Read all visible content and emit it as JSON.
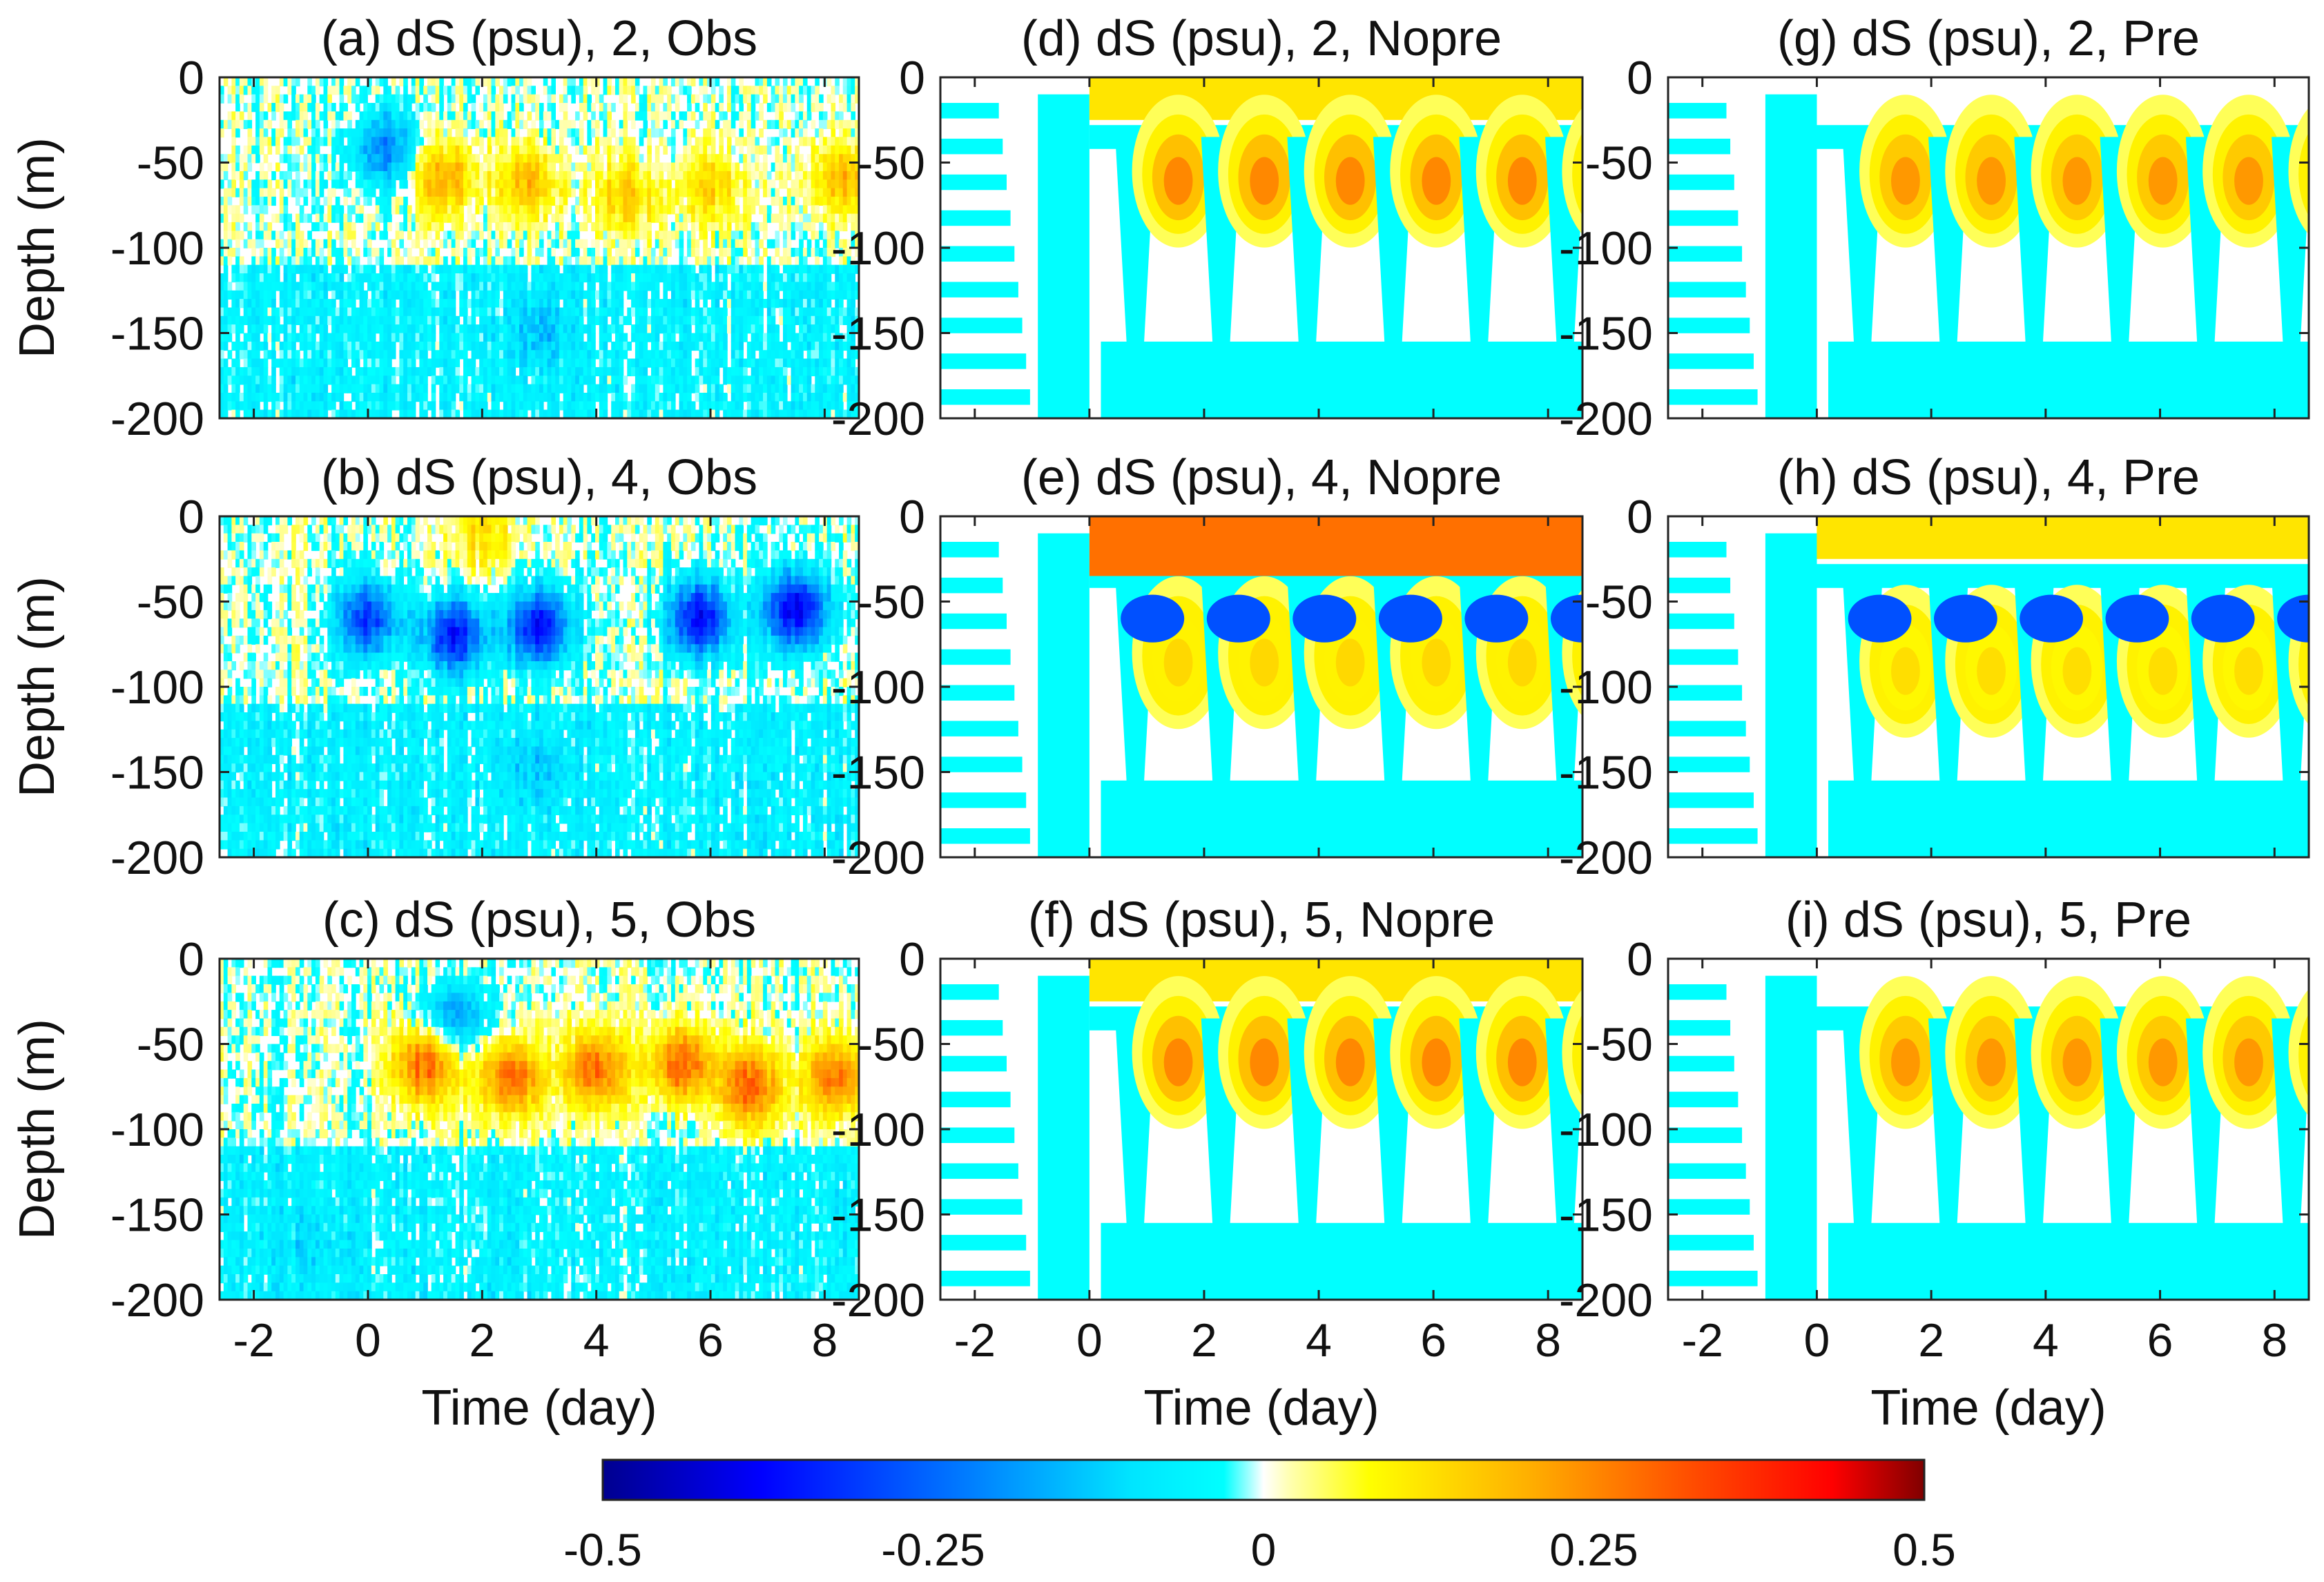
{
  "figure": {
    "shared_ylabel": "Depth (m)",
    "shared_xlabel": "Time (day)"
  },
  "colorbar": {
    "ticks": [
      "-0.5",
      "-0.25",
      "0",
      "0.25",
      "0.5"
    ],
    "range": [
      -0.5,
      0.5
    ],
    "colormap": "jet-with-white-center"
  },
  "chart_data": [
    {
      "type": "heatmap",
      "panel": "a",
      "title": "(a) dS (psu), 2, Obs",
      "xlabel": "",
      "ylabel": "Depth (m)",
      "xlim": [
        -2.6,
        8.6
      ],
      "ylim": [
        -200,
        0
      ],
      "xticks": [
        -2,
        0,
        2,
        4,
        6,
        8
      ],
      "yticks": [
        0,
        -50,
        -100,
        -150,
        -200
      ],
      "source": "Obs",
      "features": [
        {
          "t": 0.3,
          "z": -42,
          "value": -0.22
        },
        {
          "t": 1.3,
          "z": -60,
          "value": 0.2
        },
        {
          "t": 2.8,
          "z": -62,
          "value": 0.18
        },
        {
          "t": 4.5,
          "z": -70,
          "value": 0.15
        },
        {
          "t": 6.0,
          "z": -65,
          "value": 0.14
        },
        {
          "t": 8.3,
          "z": -60,
          "value": 0.18
        },
        {
          "t": 3.0,
          "z": -150,
          "value": -0.08
        }
      ]
    },
    {
      "type": "heatmap",
      "panel": "b",
      "title": "(b) dS (psu), 4, Obs",
      "xlabel": "",
      "ylabel": "Depth (m)",
      "xlim": [
        -2.6,
        8.6
      ],
      "ylim": [
        -200,
        0
      ],
      "xticks": [
        -2,
        0,
        2,
        4,
        6,
        8
      ],
      "yticks": [
        0,
        -50,
        -100,
        -150,
        -200
      ],
      "source": "Obs",
      "features": [
        {
          "t": 0.0,
          "z": -60,
          "value": -0.3
        },
        {
          "t": 1.5,
          "z": -70,
          "value": -0.35
        },
        {
          "t": 3.0,
          "z": -65,
          "value": -0.38
        },
        {
          "t": 5.8,
          "z": -60,
          "value": -0.38
        },
        {
          "t": 7.5,
          "z": -55,
          "value": -0.4
        },
        {
          "t": 2.0,
          "z": -12,
          "value": 0.12
        },
        {
          "t": 3.0,
          "z": -150,
          "value": -0.08
        }
      ]
    },
    {
      "type": "heatmap",
      "panel": "c",
      "title": "(c) dS (psu), 5, Obs",
      "xlabel": "Time (day)",
      "ylabel": "Depth (m)",
      "xlim": [
        -2.6,
        8.6
      ],
      "ylim": [
        -200,
        0
      ],
      "xticks": [
        -2,
        0,
        2,
        4,
        6,
        8
      ],
      "yticks": [
        0,
        -50,
        -100,
        -150,
        -200
      ],
      "source": "Obs",
      "features": [
        {
          "t": 1.0,
          "z": -62,
          "value": 0.3
        },
        {
          "t": 2.5,
          "z": -70,
          "value": 0.3
        },
        {
          "t": 4.0,
          "z": -65,
          "value": 0.28
        },
        {
          "t": 5.5,
          "z": -62,
          "value": 0.3
        },
        {
          "t": 6.7,
          "z": -75,
          "value": 0.3
        },
        {
          "t": 8.2,
          "z": -70,
          "value": 0.28
        },
        {
          "t": 1.5,
          "z": -35,
          "value": -0.2
        },
        {
          "t": -1.0,
          "z": -170,
          "value": -0.05
        }
      ]
    },
    {
      "type": "heatmap",
      "panel": "d",
      "title": "(d) dS (psu), 2, Nopre",
      "xlabel": "",
      "ylabel": "",
      "xlim": [
        -2.6,
        8.6
      ],
      "ylim": [
        -200,
        0
      ],
      "xticks": [
        -2,
        0,
        2,
        4,
        6,
        8
      ],
      "yticks": [
        0,
        -50,
        -100,
        -150,
        -200
      ],
      "source": "Nopre",
      "surface_layer": {
        "depth": [
          -25,
          0
        ],
        "value": 0.12
      },
      "warm_cores_days": [
        0.8,
        2.3,
        3.8,
        5.3,
        6.8,
        8.3
      ],
      "core_depth": -55,
      "core_value": 0.25
    },
    {
      "type": "heatmap",
      "panel": "e",
      "title": "(e) dS (psu), 4, Nopre",
      "xlabel": "",
      "ylabel": "",
      "xlim": [
        -2.6,
        8.6
      ],
      "ylim": [
        -200,
        0
      ],
      "xticks": [
        -2,
        0,
        2,
        4,
        6,
        8
      ],
      "yticks": [
        0,
        -50,
        -100,
        -150,
        -200
      ],
      "source": "Nopre",
      "surface_layer": {
        "depth": [
          -35,
          0
        ],
        "value": 0.28
      },
      "warm_cores_days": [
        0.8,
        2.3,
        3.8,
        5.3,
        6.8,
        8.3
      ],
      "core_depth": -80,
      "core_value": 0.14
    },
    {
      "type": "heatmap",
      "panel": "f",
      "title": "(f) dS (psu), 5, Nopre",
      "xlabel": "Time (day)",
      "ylabel": "",
      "xlim": [
        -2.6,
        8.6
      ],
      "ylim": [
        -200,
        0
      ],
      "xticks": [
        -2,
        0,
        2,
        4,
        6,
        8
      ],
      "yticks": [
        0,
        -50,
        -100,
        -150,
        -200
      ],
      "source": "Nopre",
      "surface_layer": {
        "depth": [
          -25,
          0
        ],
        "value": 0.12
      },
      "warm_cores_days": [
        0.8,
        2.3,
        3.8,
        5.3,
        6.8,
        8.3
      ],
      "core_depth": -55,
      "core_value": 0.25
    },
    {
      "type": "heatmap",
      "panel": "g",
      "title": "(g) dS (psu), 2, Pre",
      "xlabel": "",
      "ylabel": "",
      "xlim": [
        -2.6,
        8.6
      ],
      "ylim": [
        -200,
        0
      ],
      "xticks": [
        -2,
        0,
        2,
        4,
        6,
        8
      ],
      "yticks": [
        0,
        -50,
        -100,
        -150,
        -200
      ],
      "source": "Pre",
      "surface_layer": {
        "depth": [
          -12,
          0
        ],
        "value": 0.0
      },
      "warm_cores_days": [
        0.8,
        2.3,
        3.8,
        5.3,
        6.8,
        8.3
      ],
      "core_depth": -55,
      "core_value": 0.23
    },
    {
      "type": "heatmap",
      "panel": "h",
      "title": "(h) dS (psu), 4, Pre",
      "xlabel": "",
      "ylabel": "",
      "xlim": [
        -2.6,
        8.6
      ],
      "ylim": [
        -200,
        0
      ],
      "xticks": [
        -2,
        0,
        2,
        4,
        6,
        8
      ],
      "yticks": [
        0,
        -50,
        -100,
        -150,
        -200
      ],
      "source": "Pre",
      "surface_layer": {
        "depth": [
          -25,
          0
        ],
        "value": 0.12
      },
      "warm_cores_days": [
        0.8,
        2.3,
        3.8,
        5.3,
        6.8,
        8.3
      ],
      "core_depth": -85,
      "core_value": 0.13
    },
    {
      "type": "heatmap",
      "panel": "i",
      "title": "(i) dS (psu), 5, Pre",
      "xlabel": "Time (day)",
      "ylabel": "",
      "xlim": [
        -2.6,
        8.6
      ],
      "ylim": [
        -200,
        0
      ],
      "xticks": [
        -2,
        0,
        2,
        4,
        6,
        8
      ],
      "yticks": [
        0,
        -50,
        -100,
        -150,
        -200
      ],
      "source": "Pre",
      "surface_layer": {
        "depth": [
          -12,
          0
        ],
        "value": 0.0
      },
      "warm_cores_days": [
        0.8,
        2.3,
        3.8,
        5.3,
        6.8,
        8.3
      ],
      "core_depth": -55,
      "core_value": 0.23
    }
  ]
}
